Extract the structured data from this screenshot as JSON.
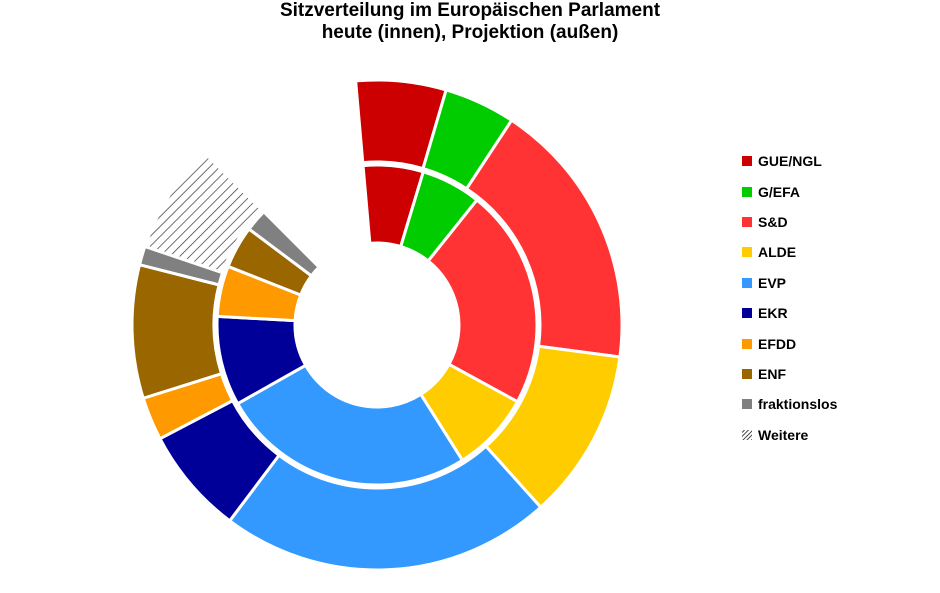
{
  "chart_data": {
    "type": "donut",
    "title": "Sitzverteilung im Europäischen Parlament",
    "subtitle": "heute (innen), Projektion (außen)",
    "categories": [
      "GUE/NGL",
      "G/EFA",
      "S&D",
      "ALDE",
      "EVP",
      "EKR",
      "EFDD",
      "ENF",
      "fraktionslos",
      "Weitere"
    ],
    "colors": [
      "#cc0000",
      "#00cc00",
      "#ff3333",
      "#ffcc00",
      "#3399ff",
      "#000099",
      "#ff9900",
      "#996600",
      "#808080",
      "hatch"
    ],
    "series": [
      {
        "ring": "inner",
        "values": [
          51,
          51,
          187,
          68,
          217,
          76,
          43,
          36,
          19,
          0
        ]
      },
      {
        "ring": "outer",
        "values": [
          48,
          38,
          144,
          91,
          177,
          57,
          23,
          71,
          10,
          59
        ]
      }
    ],
    "legend": "right"
  }
}
